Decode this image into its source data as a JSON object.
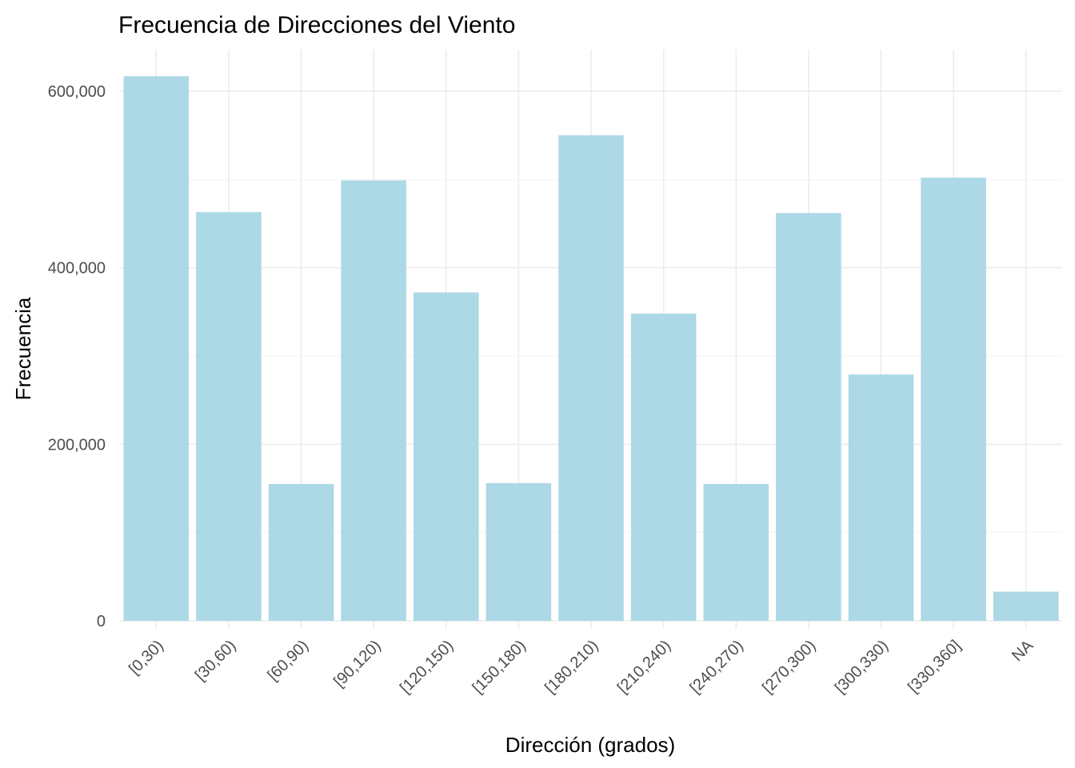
{
  "chart_data": {
    "type": "bar",
    "title": "Frecuencia de Direcciones del Viento",
    "xlabel": "Dirección (grados)",
    "ylabel": "Frecuencia",
    "categories": [
      "[0,30)",
      "[30,60)",
      "[60,90)",
      "[90,120)",
      "[120,150)",
      "[150,180)",
      "[180,210)",
      "[210,240)",
      "[240,270)",
      "[270,300)",
      "[300,330)",
      "[330,360]",
      "NA"
    ],
    "values": [
      617000,
      463000,
      155000,
      499000,
      372000,
      156000,
      550000,
      348000,
      155000,
      462000,
      279000,
      502000,
      33000
    ],
    "y_ticks": [
      0,
      200000,
      400000,
      600000
    ],
    "y_tick_labels": [
      "0",
      "200,000",
      "400,000",
      "600,000"
    ],
    "ylim": [
      0,
      650000
    ],
    "grid": true,
    "bar_color": "#ADD8E6",
    "legend": "none"
  }
}
